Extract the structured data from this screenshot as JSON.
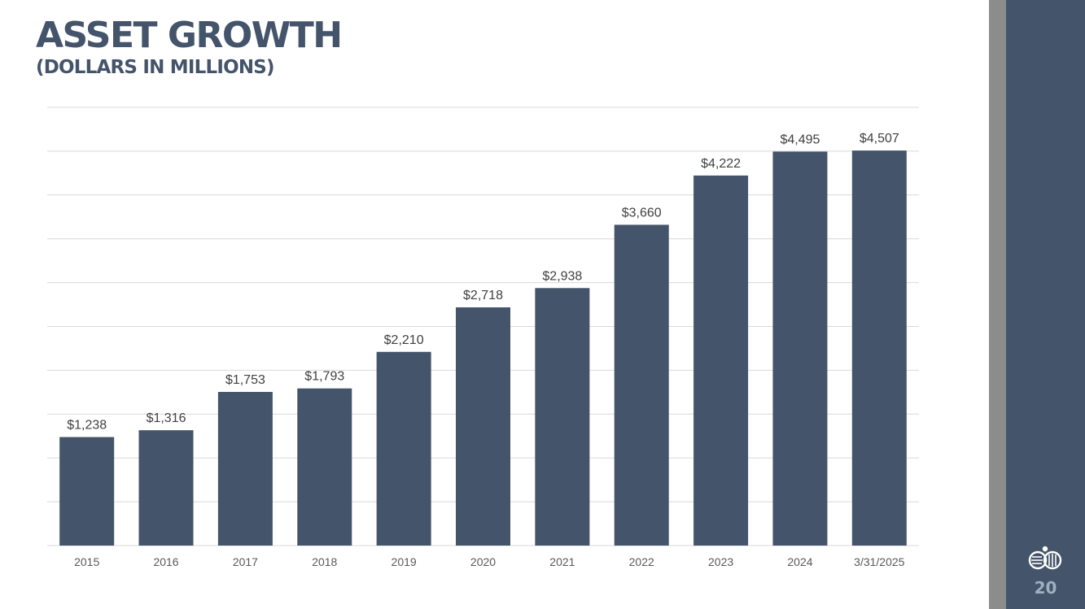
{
  "slide": {
    "title": "ASSET GROWTH",
    "subtitle": "(DOLLARS IN MILLIONS)",
    "page_number": "20",
    "logo_icon": "company-logo-icon"
  },
  "colors": {
    "bar": "#44546a",
    "gridline": "#d9d9d9",
    "label_text": "#404040",
    "axis_text": "#595959"
  },
  "chart_data": {
    "type": "bar",
    "title": "",
    "xlabel": "",
    "ylabel": "",
    "categories": [
      "2015",
      "2016",
      "2017",
      "2018",
      "2019",
      "2020",
      "2021",
      "2022",
      "2023",
      "2024",
      "3/31/2025"
    ],
    "values": [
      1238,
      1316,
      1753,
      1793,
      2210,
      2718,
      2938,
      3660,
      4222,
      4495,
      4507
    ],
    "data_labels": [
      "$1,238",
      "$1,316",
      "$1,753",
      "$1,793",
      "$2,210",
      "$2,718",
      "$2,938",
      "$3,660",
      "$4,222",
      "$4,495",
      "$4,507"
    ],
    "ylim": [
      0,
      5000
    ],
    "grid": true,
    "legend": "none"
  }
}
